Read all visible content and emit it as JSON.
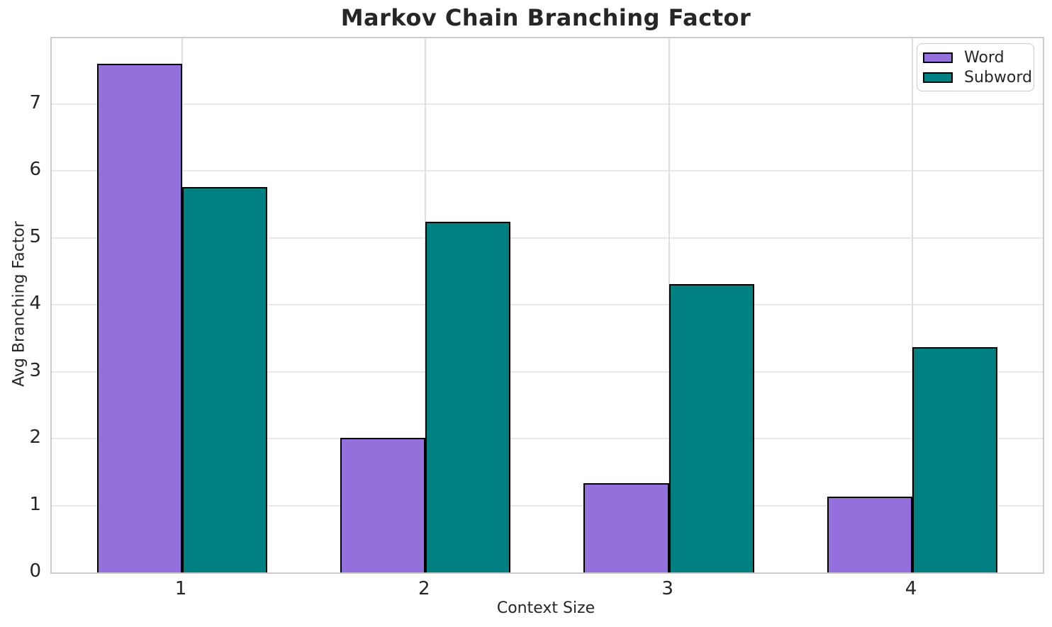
{
  "chart_data": {
    "type": "bar",
    "title": "Markov Chain Branching Factor",
    "xlabel": "Context Size",
    "ylabel": "Avg Branching Factor",
    "categories": [
      "1",
      "2",
      "3",
      "4"
    ],
    "series": [
      {
        "name": "Word",
        "color": "#9370DB",
        "values": [
          7.6,
          2.01,
          1.33,
          1.13
        ]
      },
      {
        "name": "Subword",
        "color": "#008080",
        "values": [
          5.76,
          5.24,
          4.31,
          3.37
        ]
      }
    ],
    "bar_width": 0.35,
    "edge_color": "#000000",
    "yticks": [
      0,
      1,
      2,
      3,
      4,
      5,
      6,
      7
    ],
    "ylim": [
      0,
      7.98
    ],
    "xlim": [
      0.464,
      4.536
    ],
    "grid": true,
    "legend_position": "upper right"
  }
}
